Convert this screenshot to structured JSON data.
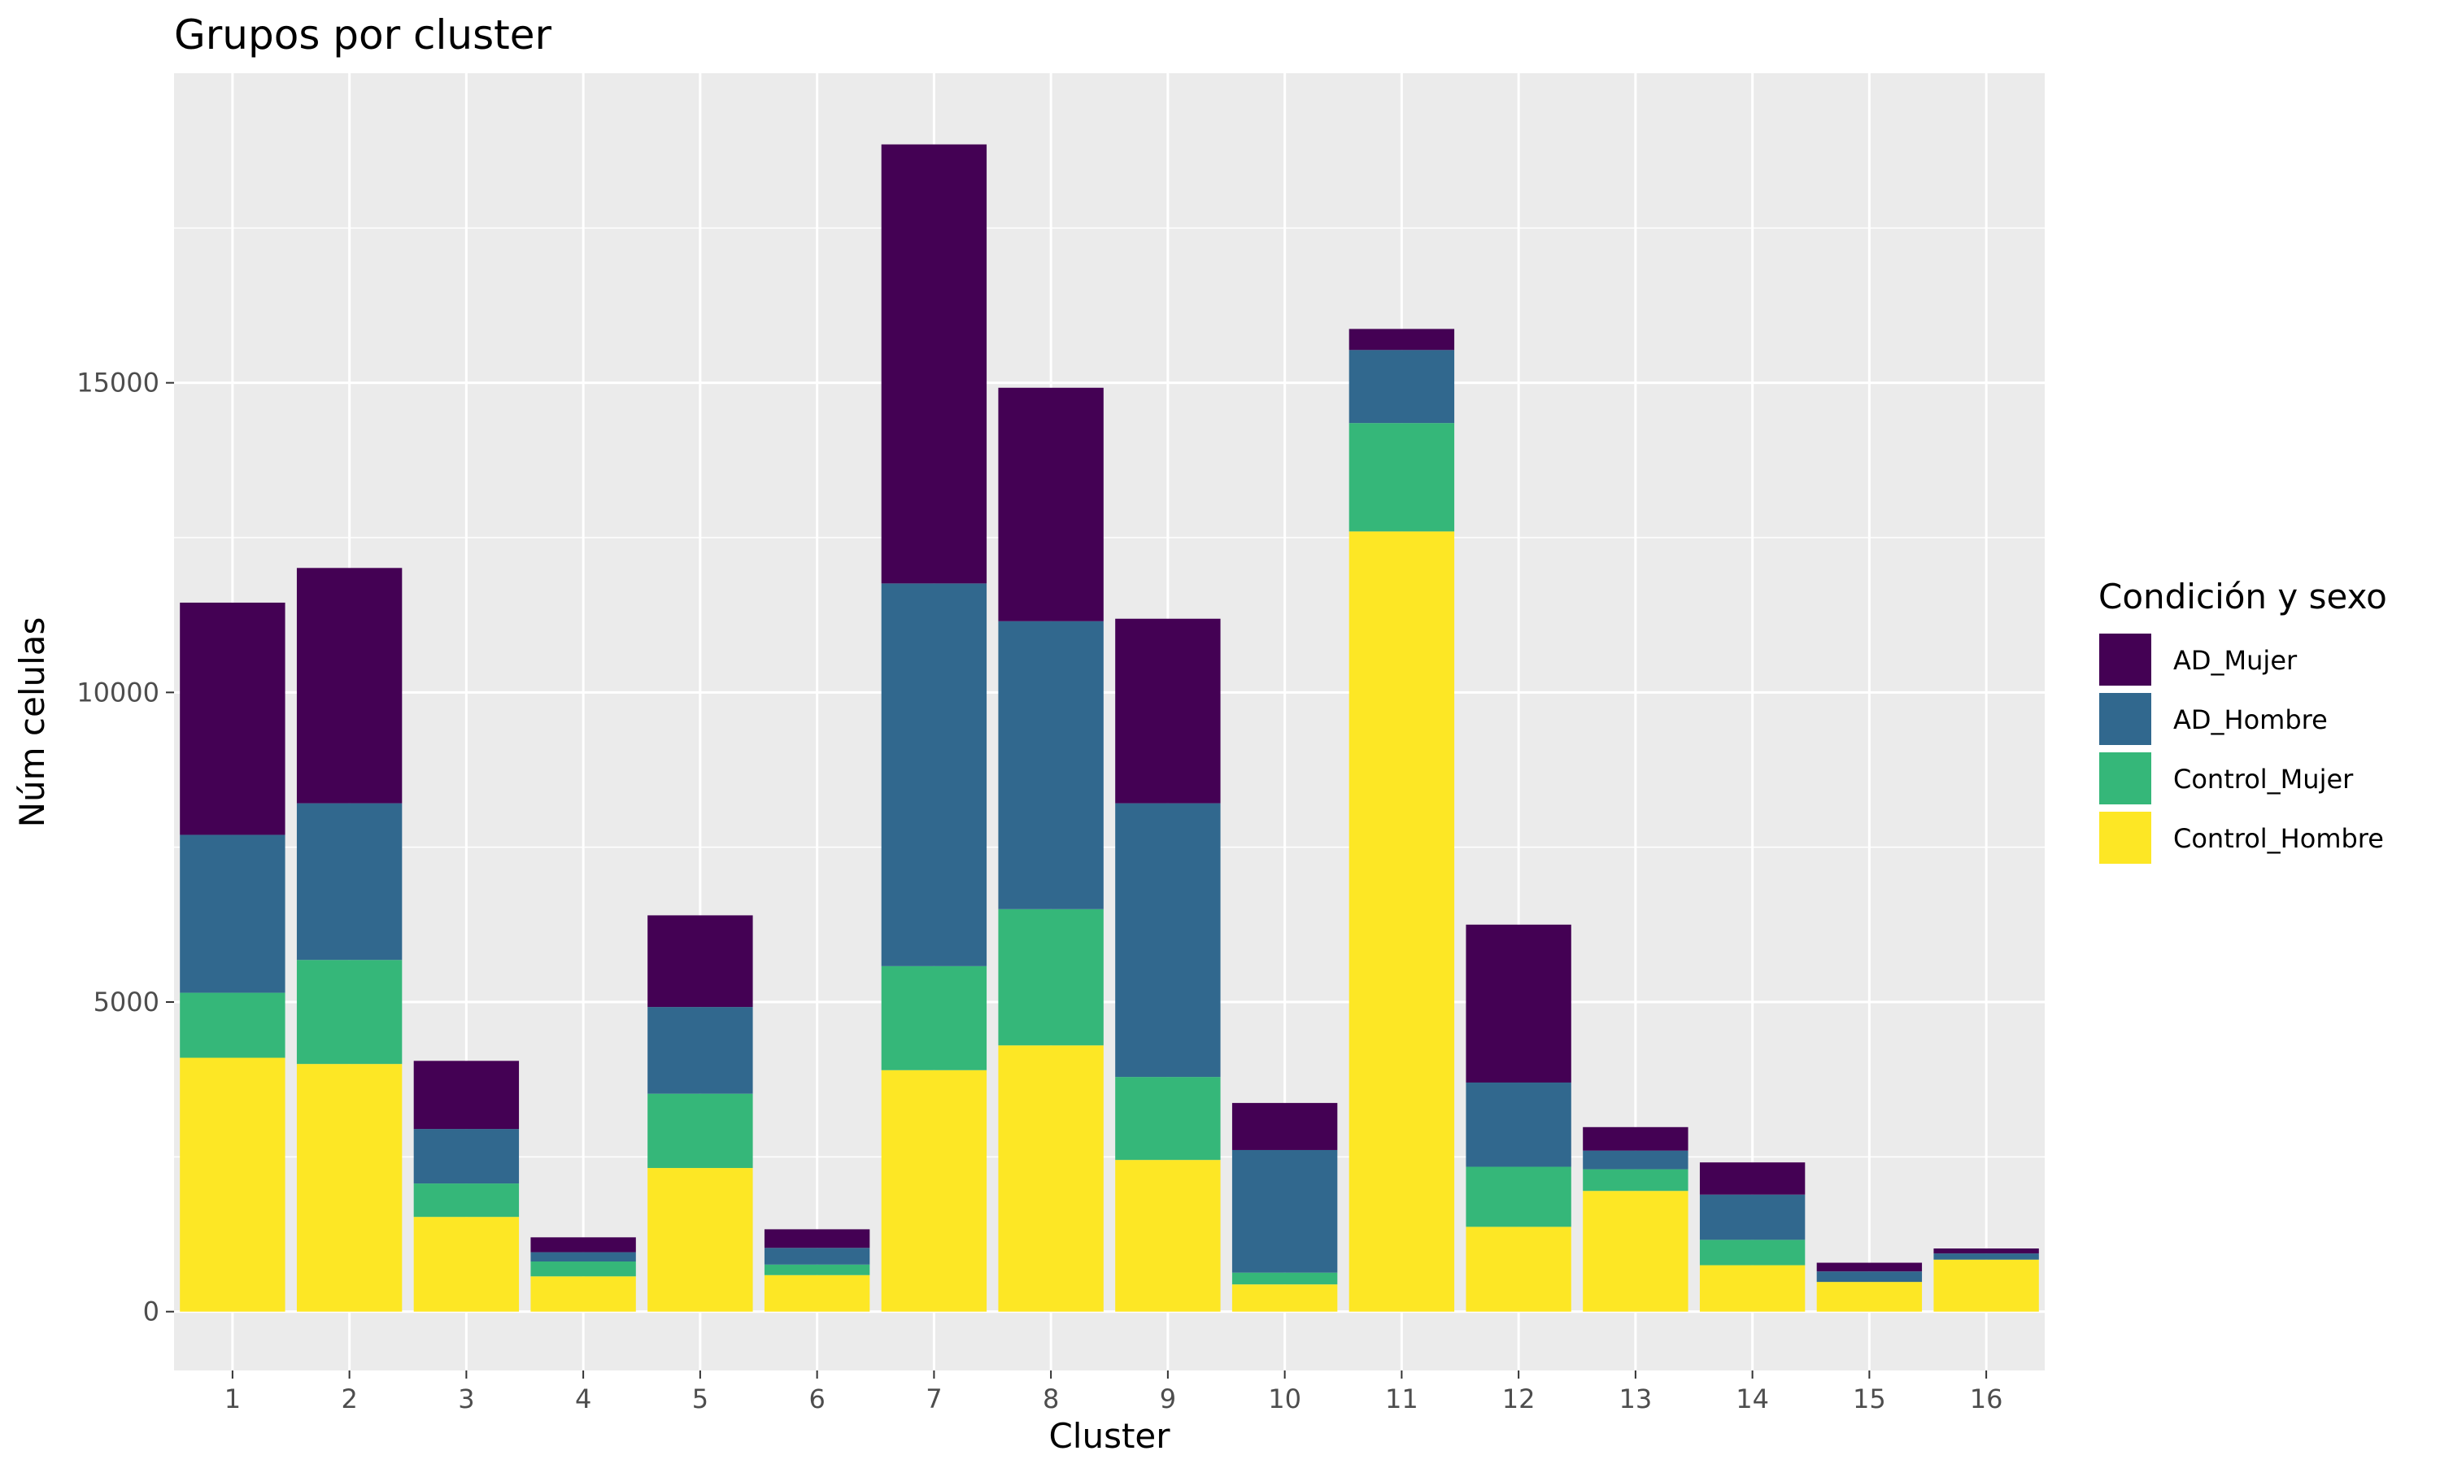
{
  "chart_data": {
    "type": "bar",
    "stacked": true,
    "title": "Grupos por cluster",
    "xlabel": "Cluster",
    "ylabel": "Núm celulas",
    "categories": [
      "1",
      "2",
      "3",
      "4",
      "5",
      "6",
      "7",
      "8",
      "9",
      "10",
      "11",
      "12",
      "13",
      "14",
      "15",
      "16"
    ],
    "ylim": [
      -950,
      20000
    ],
    "yticks": [
      0,
      5000,
      10000,
      15000
    ],
    "ytick_labels": [
      "0",
      "5000",
      "10000",
      "15000"
    ],
    "grid": true,
    "legend": {
      "title": "Condición y sexo",
      "position": "right",
      "entries": [
        "AD_Mujer",
        "AD_Hombre",
        "Control_Mujer",
        "Control_Hombre"
      ]
    },
    "series": [
      {
        "name": "Control_Hombre",
        "color": "#fde725",
        "values": [
          4100,
          4000,
          1530,
          570,
          2320,
          590,
          3900,
          4300,
          2450,
          440,
          12600,
          1370,
          1950,
          750,
          480,
          840
        ]
      },
      {
        "name": "Control_Mujer",
        "color": "#35b779",
        "values": [
          1050,
          1680,
          540,
          240,
          1200,
          170,
          1680,
          2200,
          1340,
          190,
          1750,
          970,
          350,
          410,
          0,
          0
        ]
      },
      {
        "name": "AD_Hombre",
        "color": "#31688e",
        "values": [
          2550,
          2530,
          880,
          150,
          1400,
          270,
          6180,
          4650,
          4420,
          1980,
          1180,
          1360,
          300,
          730,
          170,
          100
        ]
      },
      {
        "name": "AD_Mujer",
        "color": "#440154",
        "values": [
          3750,
          3800,
          1100,
          240,
          1480,
          300,
          7090,
          3770,
          2980,
          760,
          340,
          2550,
          380,
          520,
          140,
          80
        ]
      }
    ]
  }
}
